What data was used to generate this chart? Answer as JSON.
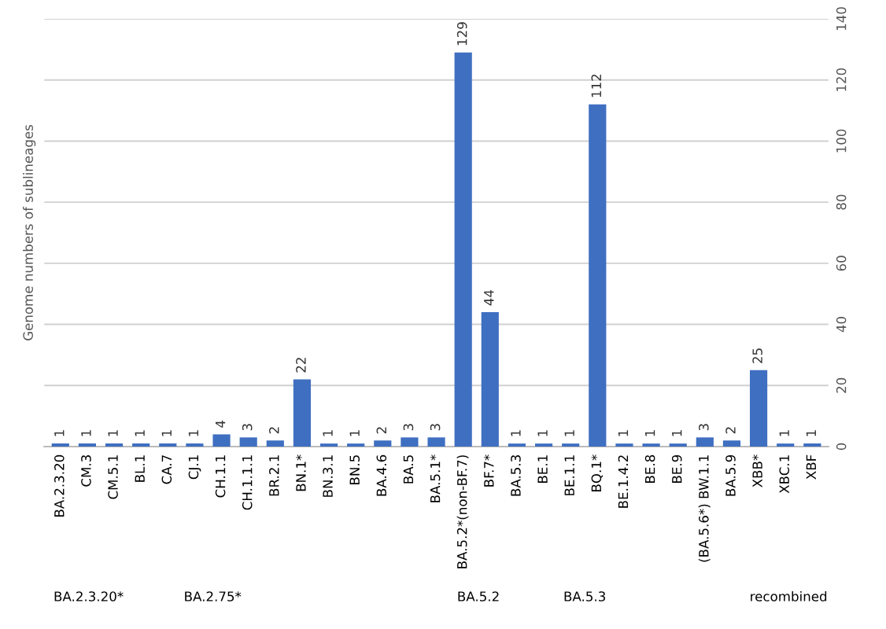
{
  "chart_data": {
    "type": "bar",
    "ylabel": "Genome numbers of sublineages",
    "categories": [
      "BA.2.3.20",
      "CM.3",
      "CM.5.1",
      "BL.1",
      "CA.7",
      "CJ.1",
      "CH.1.1",
      "CH.1.1.1",
      "BR.2.1",
      "BN.1*",
      "BN.3.1",
      "BN.5",
      "BA.4.6",
      "BA.5",
      "BA.5.1*",
      "BA.5.2*(non-BF.7)",
      "BF.7*",
      "BA.5.3",
      "BE.1",
      "BE.1.1",
      "BQ.1*",
      "BE.1.4.2",
      "BE.8",
      "BE.9",
      "(BA.5.6*) BW.1.1",
      "BA.5.9",
      "XBB*",
      "XBC.1",
      "XBF"
    ],
    "values": [
      1,
      1,
      1,
      1,
      1,
      1,
      4,
      3,
      2,
      22,
      1,
      1,
      2,
      3,
      3,
      129,
      44,
      1,
      1,
      1,
      112,
      1,
      1,
      1,
      3,
      2,
      25,
      1,
      1
    ],
    "color": "#3f6fc1",
    "ylim": [
      0,
      140
    ],
    "yticks": [
      0,
      20,
      40,
      60,
      80,
      100,
      120,
      140
    ],
    "grid": "y",
    "data_labels": true,
    "annotations": [
      "BA.2.3.20*",
      "BA.2.75*",
      "BA.5.2",
      "BA.5.3",
      "recombined"
    ]
  }
}
